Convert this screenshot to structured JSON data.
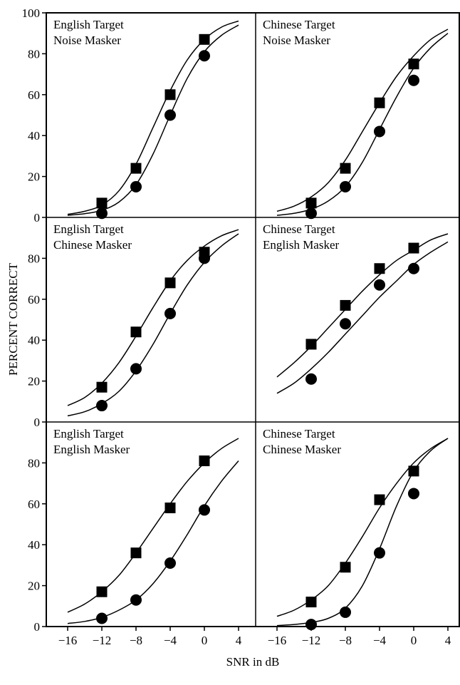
{
  "chart_data": {
    "type": "scatter",
    "layout": "3x2 panels, shared axes",
    "xlabel": "SNR in dB",
    "ylabel": "PERCENT  CORRECT",
    "xlim": [
      -18.5,
      6
    ],
    "ylim": [
      0,
      100
    ],
    "x_ticks": [
      "−16",
      "−12",
      "−8",
      "−4",
      "0",
      "4"
    ],
    "x_tick_values": [
      -16,
      -12,
      -8,
      -4,
      0,
      4
    ],
    "y_ticks_top": [
      "0",
      "20",
      "40",
      "60",
      "80",
      "100"
    ],
    "y_ticks": [
      "0",
      "20",
      "40",
      "60",
      "80"
    ],
    "y_tick_values": [
      0,
      20,
      40,
      60,
      80,
      100
    ],
    "grid": false,
    "legend": "none",
    "panels": [
      {
        "title": [
          "English Target",
          "Noise Masker"
        ],
        "series": [
          {
            "marker": "square",
            "x": [
              -12,
              -8,
              -4,
              0
            ],
            "y": [
              7,
              24,
              60,
              87
            ]
          },
          {
            "marker": "circle",
            "x": [
              -12,
              -8,
              -4,
              0
            ],
            "y": [
              2,
              15,
              50,
              79
            ]
          }
        ],
        "fits": [
          {
            "marker": "square",
            "x": [
              -16,
              -14,
              -12,
              -10,
              -8,
              -6,
              -4,
              -2,
              0,
              2,
              4
            ],
            "y": [
              1.5,
              3,
              6,
              13,
              26,
              44,
              62,
              77,
              87,
              93,
              96
            ]
          },
          {
            "marker": "circle",
            "x": [
              -16,
              -14,
              -12,
              -10,
              -8,
              -6,
              -4,
              -2,
              0,
              2,
              4
            ],
            "y": [
              1,
              1.8,
              3.5,
              7.5,
              16,
              31,
              50,
              68,
              81,
              89,
              94
            ]
          }
        ]
      },
      {
        "title": [
          "Chinese Target",
          "Noise Masker"
        ],
        "series": [
          {
            "marker": "square",
            "x": [
              -12,
              -8,
              -4,
              0
            ],
            "y": [
              7,
              24,
              56,
              75
            ]
          },
          {
            "marker": "circle",
            "x": [
              -12,
              -8,
              -4,
              0
            ],
            "y": [
              2,
              15,
              42,
              67
            ]
          }
        ],
        "fits": [
          {
            "marker": "square",
            "x": [
              -16,
              -14,
              -12,
              -10,
              -8,
              -6,
              -4,
              -2,
              0,
              2,
              4
            ],
            "y": [
              3,
              5.5,
              10,
              17,
              28,
              42,
              56,
              69,
              79,
              87,
              92
            ]
          },
          {
            "marker": "circle",
            "x": [
              -16,
              -14,
              -12,
              -10,
              -8,
              -6,
              -4,
              -2,
              0,
              2,
              4
            ],
            "y": [
              1,
              2,
              4,
              8,
              15,
              27,
              43,
              59,
              73,
              83,
              90
            ]
          }
        ]
      },
      {
        "title": [
          "English Target",
          "Chinese Masker"
        ],
        "series": [
          {
            "marker": "square",
            "x": [
              -12,
              -8,
              -4,
              0
            ],
            "y": [
              17,
              44,
              68,
              83
            ]
          },
          {
            "marker": "circle",
            "x": [
              -12,
              -8,
              -4,
              0
            ],
            "y": [
              8,
              26,
              53,
              80
            ]
          }
        ],
        "fits": [
          {
            "marker": "square",
            "x": [
              -16,
              -14,
              -12,
              -10,
              -8,
              -6,
              -4,
              -2,
              0,
              2,
              4
            ],
            "y": [
              8,
              12,
              19,
              29,
              42,
              56,
              69,
              79,
              86,
              91,
              94
            ]
          },
          {
            "marker": "circle",
            "x": [
              -16,
              -14,
              -12,
              -10,
              -8,
              -6,
              -4,
              -2,
              0,
              2,
              4
            ],
            "y": [
              3,
              5,
              9,
              15,
              25,
              38,
              53,
              67,
              78,
              86,
              92
            ]
          }
        ]
      },
      {
        "title": [
          "Chinese Target",
          "English Masker"
        ],
        "series": [
          {
            "marker": "square",
            "x": [
              -12,
              -8,
              -4,
              0
            ],
            "y": [
              38,
              57,
              75,
              85
            ]
          },
          {
            "marker": "circle",
            "x": [
              -12,
              -8,
              -4,
              0
            ],
            "y": [
              21,
              48,
              67,
              75
            ]
          }
        ],
        "fits": [
          {
            "marker": "square",
            "x": [
              -16,
              -14,
              -12,
              -10,
              -8,
              -6,
              -4,
              -2,
              0,
              2,
              4
            ],
            "y": [
              22,
              29,
              37,
              46,
              55,
              64,
              72,
              79,
              84,
              89,
              92
            ]
          },
          {
            "marker": "circle",
            "x": [
              -16,
              -14,
              -12,
              -10,
              -8,
              -6,
              -4,
              -2,
              0,
              2,
              4
            ],
            "y": [
              14,
              19,
              26,
              34,
              43,
              52,
              61,
              69,
              77,
              83,
              88
            ]
          }
        ]
      },
      {
        "title": [
          "English Target",
          "English Masker"
        ],
        "series": [
          {
            "marker": "square",
            "x": [
              -12,
              -8,
              -4,
              0
            ],
            "y": [
              17,
              36,
              58,
              81
            ]
          },
          {
            "marker": "circle",
            "x": [
              -12,
              -8,
              -4,
              0
            ],
            "y": [
              4,
              13,
              31,
              57
            ]
          }
        ],
        "fits": [
          {
            "marker": "square",
            "x": [
              -16,
              -14,
              -12,
              -10,
              -8,
              -6,
              -4,
              -2,
              0,
              2,
              4
            ],
            "y": [
              7,
              11,
              17,
              25,
              36,
              48,
              60,
              71,
              80,
              87,
              92
            ]
          },
          {
            "marker": "circle",
            "x": [
              -16,
              -14,
              -12,
              -10,
              -8,
              -6,
              -4,
              -2,
              0,
              2,
              4
            ],
            "y": [
              1.5,
              2.5,
              4.5,
              8,
              13,
              21,
              32,
              45,
              59,
              71,
              81
            ]
          }
        ]
      },
      {
        "title": [
          "Chinese Target",
          "Chinese Masker"
        ],
        "series": [
          {
            "marker": "square",
            "x": [
              -12,
              -8,
              -4,
              0
            ],
            "y": [
              12,
              29,
              62,
              76
            ]
          },
          {
            "marker": "circle",
            "x": [
              -12,
              -8,
              -4,
              0
            ],
            "y": [
              1,
              7,
              36,
              65
            ]
          }
        ],
        "fits": [
          {
            "marker": "square",
            "x": [
              -16,
              -14,
              -12,
              -10,
              -8,
              -6,
              -4,
              -2,
              0,
              2,
              4
            ],
            "y": [
              5,
              8,
              13,
              20,
              31,
              44,
              58,
              70,
              80,
              87,
              92
            ]
          },
          {
            "marker": "circle",
            "x": [
              -16,
              -14,
              -12,
              -10,
              -8,
              -6,
              -4,
              -2,
              0,
              2,
              4
            ],
            "y": [
              0.5,
              1,
              2,
              4,
              9,
              20,
              38,
              59,
              76,
              86,
              92
            ]
          }
        ]
      }
    ]
  }
}
